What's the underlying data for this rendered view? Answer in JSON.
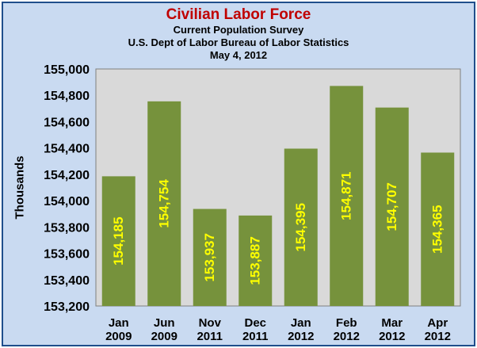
{
  "chart_data": {
    "type": "bar",
    "title": "Civilian Labor Force",
    "subtitle_lines": [
      "Current Population Survey",
      "U.S. Dept of Labor Bureau of Labor Statistics",
      "May 4, 2012"
    ],
    "ylabel": "Thousands",
    "xlabel": "",
    "ylim": [
      153200,
      155000
    ],
    "yticks": [
      153200,
      153400,
      153600,
      153800,
      154000,
      154200,
      154400,
      154600,
      154800,
      155000
    ],
    "ytick_labels": [
      "153,200",
      "153,400",
      "153,600",
      "153,800",
      "154,000",
      "154,200",
      "154,400",
      "154,600",
      "154,800",
      "155,000"
    ],
    "categories": [
      [
        "Jan",
        "2009"
      ],
      [
        "Jun",
        "2009"
      ],
      [
        "Nov",
        "2011"
      ],
      [
        "Dec",
        "2011"
      ],
      [
        "Jan",
        "2012"
      ],
      [
        "Feb",
        "2012"
      ],
      [
        "Mar",
        "2012"
      ],
      [
        "Apr",
        "2012"
      ]
    ],
    "values": [
      154185,
      154754,
      153937,
      153887,
      154395,
      154871,
      154707,
      154365
    ],
    "data_labels": [
      "154,185",
      "154,754",
      "153,937",
      "153,887",
      "154,395",
      "154,871",
      "154,707",
      "154,365"
    ],
    "grid": false,
    "legend": "none",
    "colors": {
      "bar": "#76923c",
      "bar_label": "#ffff00",
      "plot_bg": "#d9d9d9",
      "chart_bg": "#c9daf1",
      "title": "#c00000",
      "border": "#1f4e8c"
    }
  }
}
